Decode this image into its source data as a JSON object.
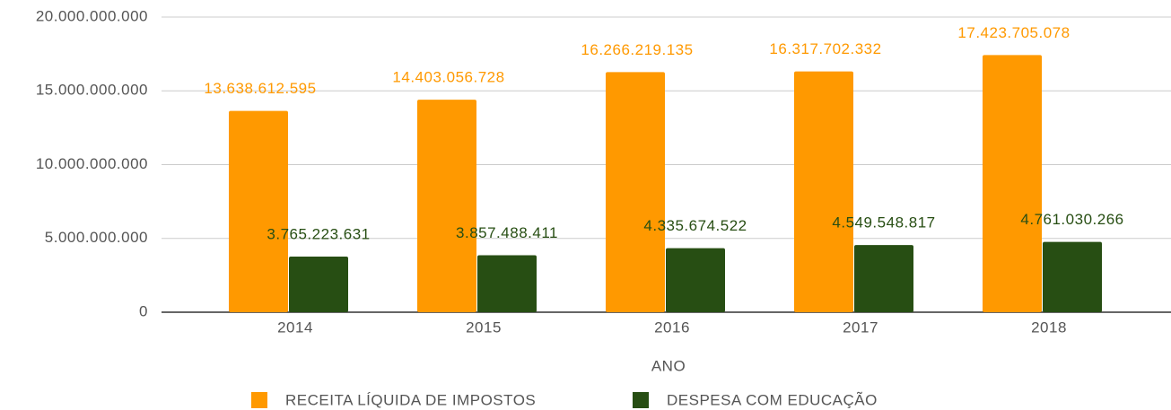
{
  "chart_data": {
    "type": "bar",
    "x_label": "ANO",
    "categories": [
      "2014",
      "2015",
      "2016",
      "2017",
      "2018"
    ],
    "series": [
      {
        "name": "RECEITA LÍQUIDA DE IMPOSTOS",
        "color": "#ff9900",
        "values": [
          13638612595,
          14403056728,
          16266219135,
          16317702332,
          17423705078
        ],
        "value_labels": [
          "13.638.612.595",
          "14.403.056.728",
          "16.266.219.135",
          "16.317.702.332",
          "17.423.705.078"
        ]
      },
      {
        "name": "DESPESA COM EDUCAÇÃO",
        "color": "#274e13",
        "values": [
          3765223631,
          3857488411,
          4335674522,
          4549548817,
          4761030266
        ],
        "value_labels": [
          "3.765.223.631",
          "3.857.488.411",
          "4.335.674.522",
          "4.549.548.817",
          "4.761.030.266"
        ]
      }
    ],
    "ylim": [
      0,
      20000000000
    ],
    "yticks": [
      0,
      {
        "value": 5000000000,
        "label": "5.000.000.000"
      },
      {
        "value": 10000000000,
        "label": "10.000.000.000"
      },
      {
        "value": 15000000000,
        "label": "15.000.000.000"
      },
      {
        "value": 20000000000,
        "label": "20.000.000.000"
      }
    ],
    "grid": true,
    "legend": "bottom"
  }
}
